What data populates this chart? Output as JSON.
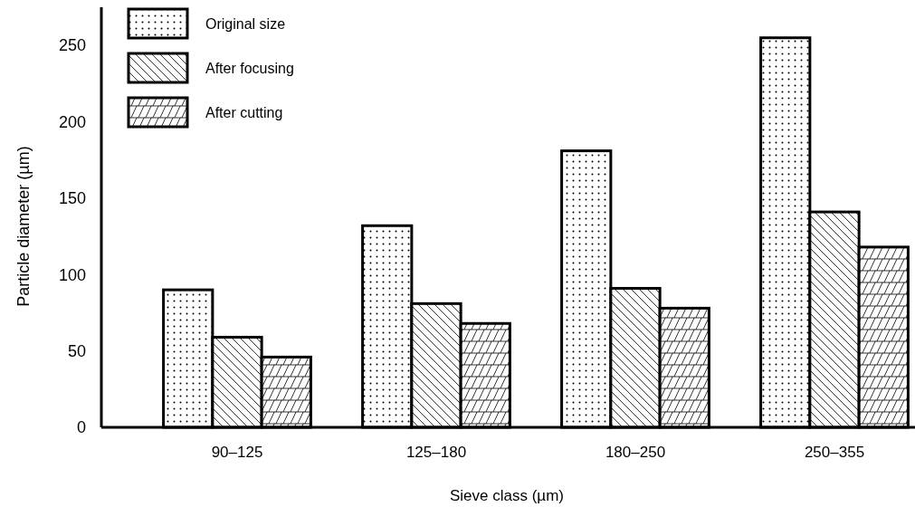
{
  "chart_data": {
    "type": "bar",
    "xlabel": "Sieve class (µm)",
    "ylabel": "Particle diameter (µm)",
    "categories": [
      "90–125",
      "125–180",
      "180–250",
      "250–355"
    ],
    "series": [
      {
        "name": "Original size",
        "color": "#000000",
        "values": [
          90,
          132,
          181,
          255
        ]
      },
      {
        "name": "After focusing",
        "color": "#000000",
        "values": [
          59,
          81,
          91,
          141
        ]
      },
      {
        "name": "After cutting",
        "color": "#000000",
        "values": [
          46,
          68,
          78,
          118
        ]
      }
    ],
    "ylim": [
      0,
      275
    ],
    "yticks": [
      0,
      50,
      100,
      150,
      200,
      250
    ],
    "grid": false,
    "legend": "top left"
  }
}
